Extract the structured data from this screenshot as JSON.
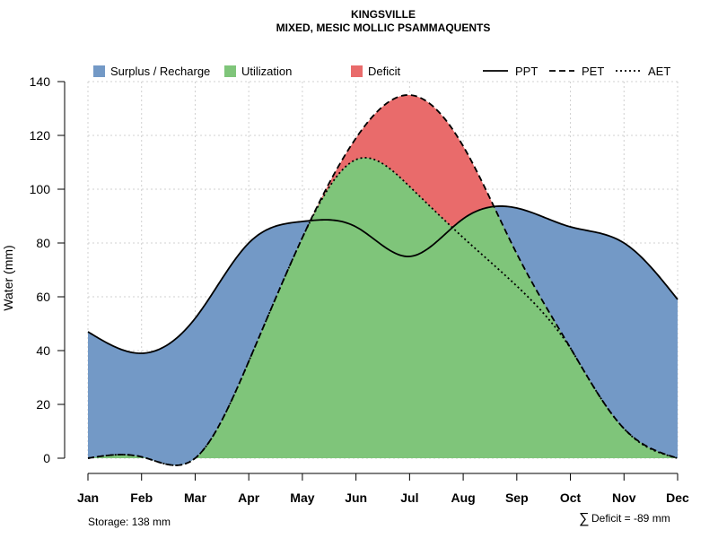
{
  "chart_data": {
    "type": "area",
    "title": "KINGSVILLE",
    "subtitle": "MIXED, MESIC MOLLIC PSAMMAQUENTS",
    "xlabel": "",
    "ylabel": "Water (mm)",
    "ylim": [
      0,
      140
    ],
    "yticks": [
      0,
      20,
      40,
      60,
      80,
      100,
      120,
      140
    ],
    "grid": true,
    "legend_position": "top",
    "categories": [
      "Jan",
      "Feb",
      "Mar",
      "Apr",
      "May",
      "Jun",
      "Jul",
      "Aug",
      "Sep",
      "Oct",
      "Nov",
      "Dec"
    ],
    "series": [
      {
        "name": "PPT",
        "style": "solid",
        "values": [
          47,
          39,
          52,
          80,
          88,
          86,
          75,
          89,
          93,
          86,
          80,
          59
        ]
      },
      {
        "name": "PET",
        "style": "dashed",
        "values": [
          0,
          0.5,
          0,
          36,
          82,
          119,
          135,
          116,
          76,
          41,
          11,
          0
        ]
      },
      {
        "name": "AET",
        "style": "dotted",
        "values": [
          0,
          0.5,
          0,
          36,
          82,
          111,
          101,
          82,
          64,
          41,
          11,
          0
        ]
      }
    ],
    "areas": [
      {
        "name": "Surplus / Recharge",
        "color": "#7399c6"
      },
      {
        "name": "Utilization",
        "color": "#7fc57a"
      },
      {
        "name": "Deficit",
        "color": "#e96b6b"
      }
    ]
  },
  "footer": {
    "storage": "Storage: 138 mm",
    "deficit_symbol": "∑",
    "deficit": "Deficit = -89 mm"
  }
}
